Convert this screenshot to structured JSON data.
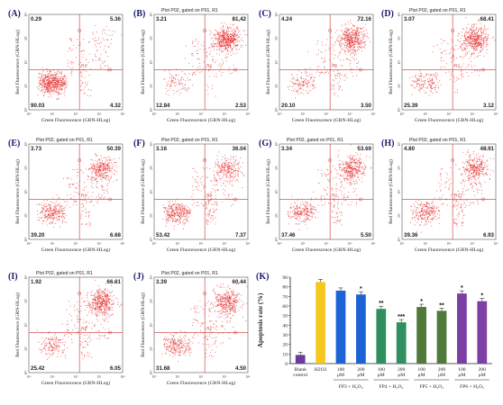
{
  "flow_panels": [
    {
      "label": "(A)",
      "title": "",
      "q": [
        "0.29",
        "5.36",
        "90.03",
        "4.32"
      ]
    },
    {
      "label": "(B)",
      "title": "Plot P02, gated on P01, R1",
      "q": [
        "3.21",
        "81.42",
        "12.84",
        "2.53"
      ]
    },
    {
      "label": "(C)",
      "title": "",
      "q": [
        "4.24",
        "72.16",
        "20.10",
        "3.50"
      ]
    },
    {
      "label": "(D)",
      "title": "Plot P02, gated on P01, R1",
      "q": [
        "3.07",
        "68.41",
        "25.39",
        "3.12"
      ]
    },
    {
      "label": "(E)",
      "title": "Plot P02, gated on P01, R1",
      "q": [
        "3.73",
        "50.39",
        "39.20",
        "6.68"
      ]
    },
    {
      "label": "(F)",
      "title": "Plot P02, gated on P01, R1",
      "q": [
        "3.16",
        "36.04",
        "53.42",
        "7.37"
      ]
    },
    {
      "label": "(G)",
      "title": "Plot P02, gated on P01, R1",
      "q": [
        "3.34",
        "53.69",
        "37.46",
        "5.50"
      ]
    },
    {
      "label": "(H)",
      "title": "Plot P02, gated on P01, R1",
      "q": [
        "4.80",
        "48.91",
        "39.36",
        "6.93"
      ]
    },
    {
      "label": "(I)",
      "title": "Plot P02, gated on P01, R1",
      "q": [
        "1.92",
        "66.61",
        "25.42",
        "6.05"
      ]
    },
    {
      "label": "(J)",
      "title": "Plot P02, gated on P01, R1",
      "q": [
        "3.39",
        "60.44",
        "31.68",
        "4.50"
      ]
    }
  ],
  "flow_axes": {
    "xlabel": "Green Fluorescence (GRN-HLog)",
    "ylabel": "Red Fluorescence (GRN-HLog)",
    "ticks": [
      "10⁰",
      "10¹",
      "10²",
      "10³",
      "10⁴"
    ],
    "gate_label": "R2"
  },
  "chart_data": {
    "type": "bar",
    "label": "(K)",
    "ylabel": "Apoptosis rate (%)",
    "ylim": [
      0,
      90
    ],
    "yticks": [
      0,
      10,
      20,
      30,
      40,
      50,
      60,
      70,
      80,
      90
    ],
    "bars": [
      {
        "label": "Blank control",
        "value": 9,
        "color": "#6b3a9a",
        "sig": ""
      },
      {
        "label": "H2O2",
        "value": 85,
        "color": "#f5c820",
        "sig": ""
      },
      {
        "label": "100 μM",
        "value": 76,
        "color": "#1e63d6",
        "sig": ""
      },
      {
        "label": "200 μM",
        "value": 72,
        "color": "#1e63d6",
        "sig": "*"
      },
      {
        "label": "100 μM",
        "value": 57,
        "color": "#2f8f5f",
        "sig": "**"
      },
      {
        "label": "200 μM",
        "value": 43,
        "color": "#2f8f5f",
        "sig": "***"
      },
      {
        "label": "100 μM",
        "value": 59,
        "color": "#4f7a3a",
        "sig": "*"
      },
      {
        "label": "200 μM",
        "value": 55,
        "color": "#4f7a3a",
        "sig": "**"
      },
      {
        "label": "100 μM",
        "value": 73,
        "color": "#7b3fa6",
        "sig": "*"
      },
      {
        "label": "200 μM",
        "value": 65,
        "color": "#7b3fa6",
        "sig": "*"
      }
    ],
    "groups": [
      "FP3 + H₂O₂",
      "FP4 + H₂O₂",
      "FP5 + H₂O₂",
      "FP6 + H₂O₂"
    ]
  }
}
